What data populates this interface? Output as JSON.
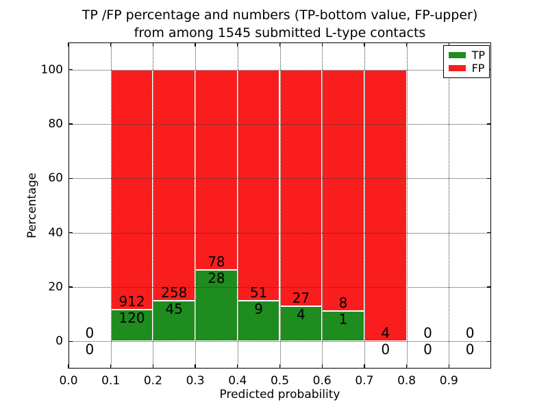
{
  "title": {
    "line1": "TP /FP percentage and numbers (TP-bottom value, FP-upper)",
    "line2": "from among 1545 submitted L-type contacts"
  },
  "axes": {
    "xlabel": "Predicted probability",
    "ylabel": "Percentage"
  },
  "legend": {
    "position": "upper right",
    "items": [
      {
        "label": "TP",
        "color": "#1e8c1e"
      },
      {
        "label": "FP",
        "color": "#f91d1d"
      }
    ]
  },
  "chart_data": {
    "type": "bar",
    "stacked": true,
    "normalized_to_100_percent": true,
    "title": "TP /FP percentage and numbers (TP-bottom value, FP-upper) from among 1545 submitted L-type contacts",
    "xlabel": "Predicted probability",
    "ylabel": "Percentage",
    "xlim": [
      0.0,
      1.0
    ],
    "ylim": [
      -10,
      110
    ],
    "grid": "dotted",
    "total_contacts": 1545,
    "bin_edges": [
      0.0,
      0.1,
      0.2,
      0.3,
      0.4,
      0.5,
      0.6,
      0.7,
      0.8,
      0.9,
      1.0
    ],
    "series": [
      {
        "name": "TP",
        "color": "#1e8c1e",
        "counts": [
          0,
          120,
          45,
          28,
          9,
          4,
          1,
          0,
          0,
          0
        ]
      },
      {
        "name": "FP",
        "color": "#f91d1d",
        "counts": [
          0,
          912,
          258,
          78,
          51,
          27,
          8,
          4,
          0,
          0
        ]
      }
    ],
    "tp_percent_of_bin": [
      null,
      11.63,
      14.85,
      26.42,
      15.0,
      12.9,
      11.11,
      0.0,
      null,
      null
    ],
    "x_tick_values": [
      0.0,
      0.1,
      0.2,
      0.3,
      0.4,
      0.5,
      0.6,
      0.7,
      0.8,
      0.9
    ],
    "x_tick_labels": [
      "0.0",
      "0.1",
      "0.2",
      "0.3",
      "0.4",
      "0.5",
      "0.6",
      "0.7",
      "0.8",
      "0.9"
    ],
    "y_tick_values": [
      0,
      20,
      40,
      60,
      80,
      100
    ],
    "y_tick_labels": [
      "0",
      "20",
      "40",
      "60",
      "80",
      "100"
    ]
  }
}
